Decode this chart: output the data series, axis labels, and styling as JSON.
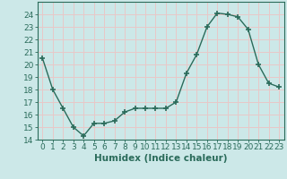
{
  "x": [
    0,
    1,
    2,
    3,
    4,
    5,
    6,
    7,
    8,
    9,
    10,
    11,
    12,
    13,
    14,
    15,
    16,
    17,
    18,
    19,
    20,
    21,
    22,
    23
  ],
  "y": [
    20.5,
    18.0,
    16.5,
    15.0,
    14.3,
    15.3,
    15.3,
    15.5,
    16.2,
    16.5,
    16.5,
    16.5,
    16.5,
    17.0,
    19.3,
    20.8,
    23.0,
    24.1,
    24.0,
    23.8,
    22.8,
    20.0,
    18.5,
    18.2
  ],
  "xlabel": "Humidex (Indice chaleur)",
  "ylim": [
    14,
    25
  ],
  "xlim_min": -0.5,
  "xlim_max": 23.5,
  "yticks": [
    14,
    15,
    16,
    17,
    18,
    19,
    20,
    21,
    22,
    23,
    24
  ],
  "xticks": [
    0,
    1,
    2,
    3,
    4,
    5,
    6,
    7,
    8,
    9,
    10,
    11,
    12,
    13,
    14,
    15,
    16,
    17,
    18,
    19,
    20,
    21,
    22,
    23
  ],
  "line_color": "#2a6b5a",
  "marker_color": "#2a6b5a",
  "bg_color": "#cce8e8",
  "grid_color": "#e8c8c8",
  "axis_color": "#2a6b5a",
  "xlabel_fontsize": 7.5,
  "tick_fontsize": 6.5
}
